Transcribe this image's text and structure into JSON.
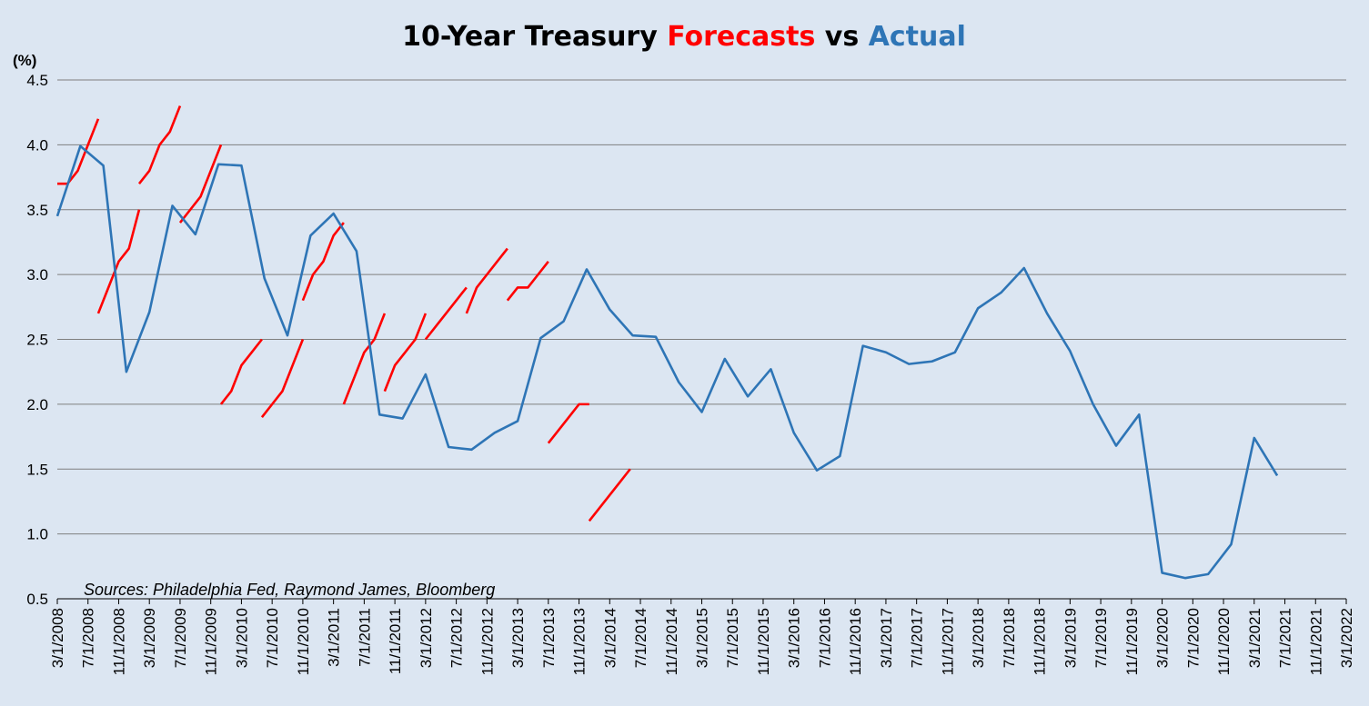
{
  "chart_data": {
    "type": "line",
    "title": {
      "part1": "10-Year Treasury ",
      "part2": "Forecasts",
      "part3": " vs ",
      "part4": "Actual"
    },
    "ylabel": "(%)",
    "ylim": [
      0.5,
      4.5
    ],
    "yticks": [
      "0.5",
      "1.0",
      "1.5",
      "2.0",
      "2.5",
      "3.0",
      "3.5",
      "4.0",
      "4.5"
    ],
    "grid": true,
    "source_note": "Sources: Philadelphia Fed, Raymond James, Bloomberg",
    "x_tick_labels": [
      "3/1/2008",
      "7/1/2008",
      "11/1/2008",
      "3/1/2009",
      "7/1/2009",
      "11/1/2009",
      "3/1/2010",
      "7/1/2010",
      "11/1/2010",
      "3/1/2011",
      "7/1/2011",
      "11/1/2011",
      "3/1/2012",
      "7/1/2012",
      "11/1/2012",
      "3/1/2013",
      "7/1/2013",
      "11/1/2013",
      "3/1/2014",
      "7/1/2014",
      "11/1/2014",
      "3/1/2015",
      "7/1/2015",
      "11/1/2015",
      "3/1/2016",
      "7/1/2016",
      "11/1/2016",
      "3/1/2017",
      "7/1/2017",
      "11/1/2017",
      "3/1/2018",
      "7/1/2018",
      "11/1/2018",
      "3/1/2019",
      "7/1/2019",
      "11/1/2019",
      "3/1/2020",
      "7/1/2020",
      "11/1/2020",
      "3/1/2021",
      "7/1/2021",
      "11/1/2021",
      "3/1/2022"
    ],
    "colors": {
      "actual": "#2e75b6",
      "forecast": "#ff0000",
      "grid": "#7f7f7f",
      "background": "#dce6f2"
    },
    "actual": {
      "name": "Actual",
      "values": [
        3.45,
        3.99,
        3.84,
        2.25,
        2.71,
        3.53,
        3.31,
        3.85,
        3.84,
        2.97,
        2.53,
        3.3,
        3.47,
        3.18,
        1.92,
        1.89,
        2.23,
        1.67,
        1.65,
        1.78,
        1.87,
        2.51,
        2.64,
        3.04,
        2.73,
        2.53,
        2.52,
        2.17,
        1.94,
        2.35,
        2.06,
        2.27,
        1.78,
        1.49,
        1.6,
        2.45,
        2.4,
        2.31,
        2.33,
        2.4,
        2.74,
        2.86,
        3.05,
        2.7,
        2.41,
        2.0,
        1.68,
        1.92,
        0.7,
        0.66,
        0.69,
        0.92,
        1.74,
        1.45
      ]
    },
    "forecasts": [
      {
        "start_index": 0,
        "values": [
          3.7,
          3.7,
          3.8,
          4.0,
          4.2
        ]
      },
      {
        "start_index": 4,
        "values": [
          2.7,
          2.9,
          3.1,
          3.2,
          3.5
        ]
      },
      {
        "start_index": 8,
        "values": [
          3.7,
          3.8,
          4.0,
          4.1,
          4.3
        ]
      },
      {
        "start_index": 12,
        "values": [
          3.4,
          3.5,
          3.6,
          3.8,
          4.0
        ]
      },
      {
        "start_index": 16,
        "values": [
          2.0,
          2.1,
          2.3,
          2.4,
          2.5
        ]
      },
      {
        "start_index": 20,
        "values": [
          1.9,
          2.0,
          2.1,
          2.3,
          2.5
        ]
      },
      {
        "start_index": 24,
        "values": [
          2.8,
          3.0,
          3.1,
          3.3,
          3.4
        ]
      },
      {
        "start_index": 28,
        "values": [
          2.0,
          2.2,
          2.4,
          2.5,
          2.7
        ]
      },
      {
        "start_index": 32,
        "values": [
          2.1,
          2.3,
          2.4,
          2.5,
          2.7
        ]
      },
      {
        "start_index": 36,
        "values": [
          2.5,
          2.6,
          2.7,
          2.8,
          2.9
        ]
      },
      {
        "start_index": 40,
        "values": [
          2.7,
          2.9,
          3.0,
          3.1,
          3.2
        ]
      },
      {
        "start_index": 44,
        "values": [
          2.8,
          2.9,
          2.9,
          3.0,
          3.1
        ]
      },
      {
        "start_index": 48,
        "values": [
          1.7,
          1.8,
          1.9,
          2.0,
          2.0
        ]
      },
      {
        "start_index": 52,
        "values": [
          1.1,
          1.2,
          1.3,
          1.4,
          1.5
        ]
      }
    ]
  }
}
